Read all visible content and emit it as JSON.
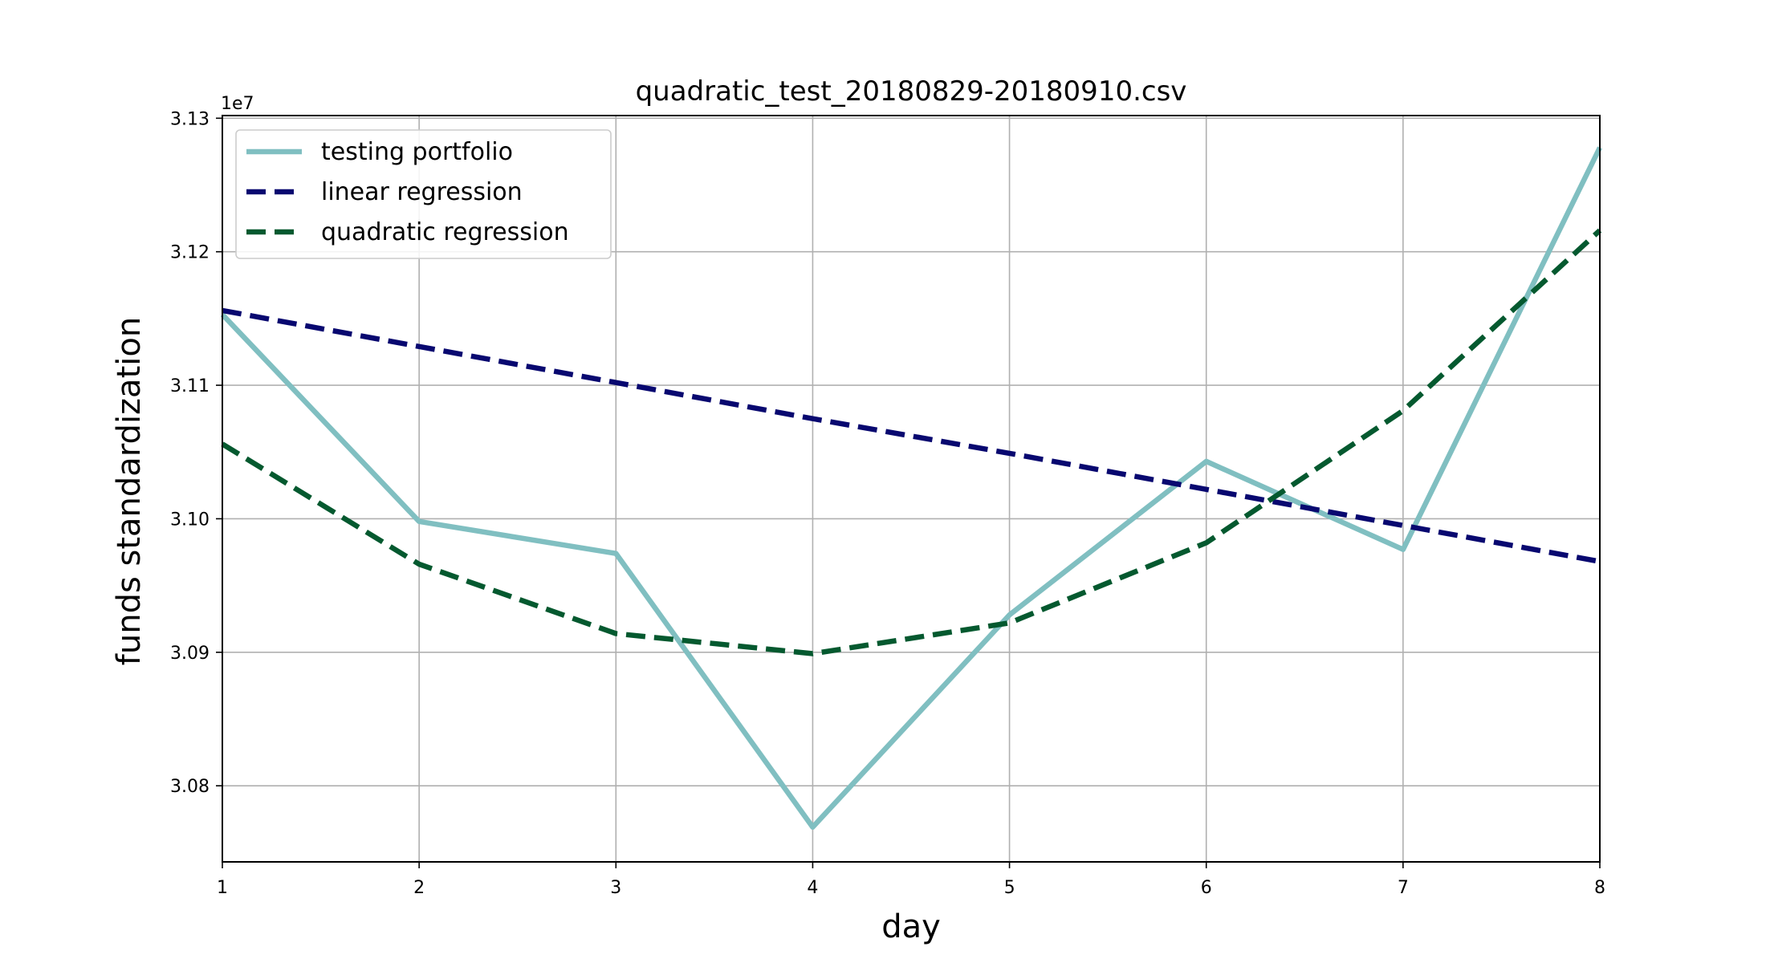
{
  "chart_data": {
    "type": "line",
    "title": "quadratic_test_20180829-20180910.csv",
    "xlabel": "day",
    "ylabel": "funds standardization",
    "y_offset_label": "1e7",
    "xlim": [
      1,
      8
    ],
    "ylim": [
      3.0743,
      3.1302
    ],
    "x_ticks": [
      1,
      2,
      3,
      4,
      5,
      6,
      7,
      8
    ],
    "x_tick_labels": [
      "1",
      "2",
      "3",
      "4",
      "5",
      "6",
      "7",
      "8"
    ],
    "y_ticks": [
      3.08,
      3.09,
      3.1,
      3.11,
      3.12,
      3.13
    ],
    "y_tick_labels": [
      "3.08",
      "3.09",
      "3.10",
      "3.11",
      "3.12",
      "3.13"
    ],
    "grid": true,
    "legend_position": "top-left",
    "x": [
      1,
      2,
      3,
      4,
      5,
      6,
      7,
      8
    ],
    "series": [
      {
        "name": "testing portfolio",
        "color": "#80bfc1",
        "dash": "solid",
        "values": [
          3.1153,
          3.0998,
          3.0974,
          3.0769,
          3.0928,
          3.1043,
          3.0977,
          3.1278
        ]
      },
      {
        "name": "linear regression",
        "color": "#080870",
        "dash": "dashed",
        "values": [
          3.1156,
          3.1129,
          3.1102,
          3.1075,
          3.1049,
          3.1022,
          3.0995,
          3.0968
        ]
      },
      {
        "name": "quadratic regression",
        "color": "#04592f",
        "dash": "dashed",
        "values": [
          3.1056,
          3.0966,
          3.0914,
          3.0899,
          3.0922,
          3.0982,
          3.1081,
          3.1216
        ]
      }
    ]
  }
}
